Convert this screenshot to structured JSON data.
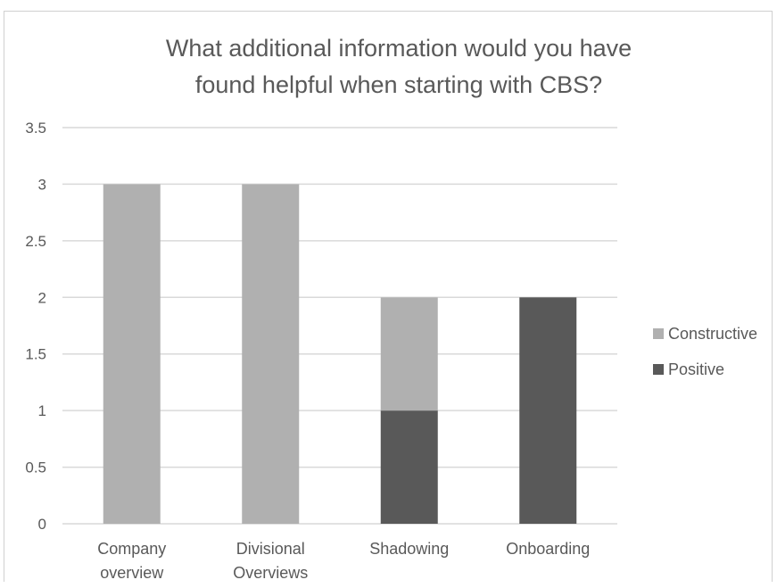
{
  "chart_data": {
    "type": "bar",
    "stacked": true,
    "title_lines": [
      "What additional information would you have",
      "found helpful when starting with CBS?"
    ],
    "categories": [
      [
        "Company",
        "overview"
      ],
      [
        "Divisional",
        "Overviews"
      ],
      [
        "Shadowing"
      ],
      [
        "Onboarding"
      ]
    ],
    "series": [
      {
        "name": "Positive",
        "values": [
          0,
          0,
          1,
          2
        ],
        "color": "#595959"
      },
      {
        "name": "Constructive",
        "values": [
          3,
          3,
          1,
          0
        ],
        "color": "#b0b0b0"
      }
    ],
    "legend_order": [
      "Constructive",
      "Positive"
    ],
    "y_ticks": [
      "0",
      "0.5",
      "1",
      "1.5",
      "2",
      "2.5",
      "3",
      "3.5"
    ],
    "ylim": [
      0,
      3.5
    ],
    "grid": true,
    "legend_position": "right"
  }
}
